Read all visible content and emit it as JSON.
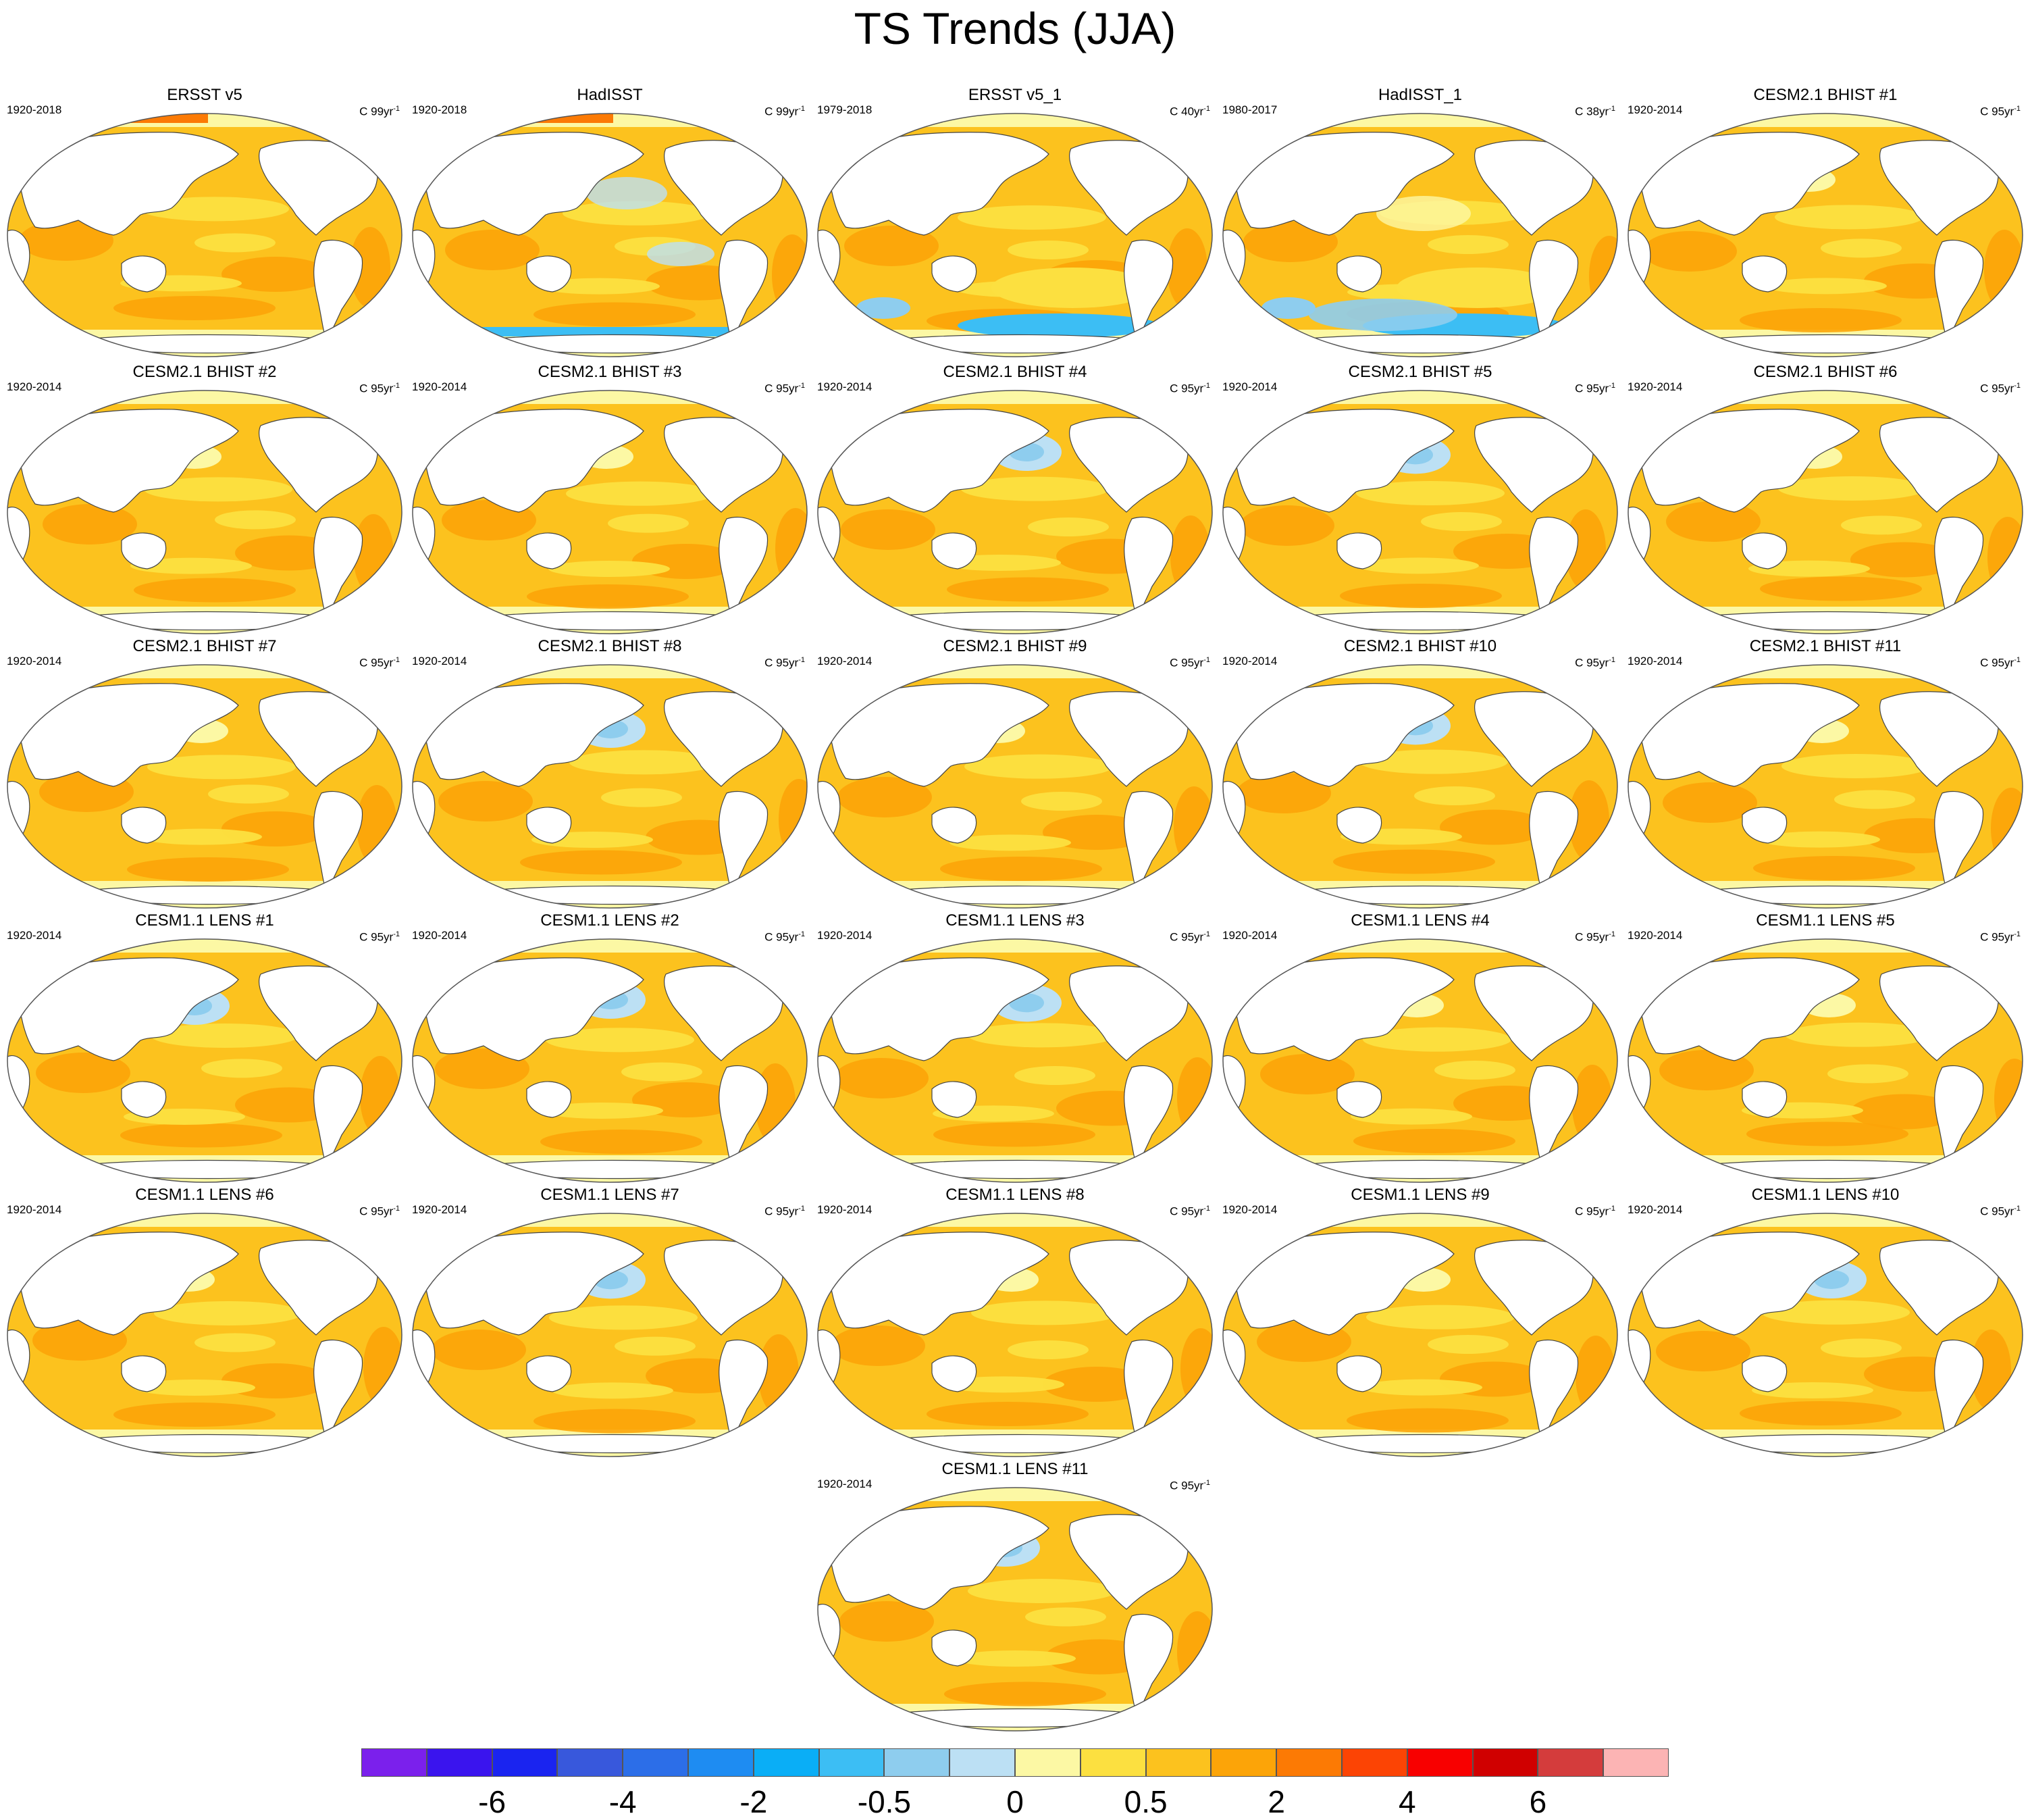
{
  "title": "TS Trends (JJA)",
  "panels": [
    {
      "name": "ERSST v5",
      "years": "1920-2018",
      "units": "C 99yr",
      "variant": "obs"
    },
    {
      "name": "HadISST",
      "years": "1920-2018",
      "units": "C 99yr",
      "variant": "obs-noisy"
    },
    {
      "name": "ERSST v5_1",
      "years": "1979-2018",
      "units": "C 40yr",
      "variant": "obs-recent"
    },
    {
      "name": "HadISST_1",
      "years": "1980-2017",
      "units": "C 38yr",
      "variant": "obs-recent-noisy"
    },
    {
      "name": "CESM2.1 BHIST #1",
      "years": "1920-2014",
      "units": "C 95yr",
      "variant": "model"
    },
    {
      "name": "CESM2.1 BHIST #2",
      "years": "1920-2014",
      "units": "C 95yr",
      "variant": "model"
    },
    {
      "name": "CESM2.1 BHIST #3",
      "years": "1920-2014",
      "units": "C 95yr",
      "variant": "model"
    },
    {
      "name": "CESM2.1 BHIST #4",
      "years": "1920-2014",
      "units": "C 95yr",
      "variant": "model-blue"
    },
    {
      "name": "CESM2.1 BHIST #5",
      "years": "1920-2014",
      "units": "C 95yr",
      "variant": "model-blue"
    },
    {
      "name": "CESM2.1 BHIST #6",
      "years": "1920-2014",
      "units": "C 95yr",
      "variant": "model"
    },
    {
      "name": "CESM2.1 BHIST #7",
      "years": "1920-2014",
      "units": "C 95yr",
      "variant": "model"
    },
    {
      "name": "CESM2.1 BHIST #8",
      "years": "1920-2014",
      "units": "C 95yr",
      "variant": "model-blue"
    },
    {
      "name": "CESM2.1 BHIST #9",
      "years": "1920-2014",
      "units": "C 95yr",
      "variant": "model"
    },
    {
      "name": "CESM2.1 BHIST #10",
      "years": "1920-2014",
      "units": "C 95yr",
      "variant": "model-blue"
    },
    {
      "name": "CESM2.1 BHIST #11",
      "years": "1920-2014",
      "units": "C 95yr",
      "variant": "model"
    },
    {
      "name": "CESM1.1 LENS #1",
      "years": "1920-2014",
      "units": "C 95yr",
      "variant": "model-blue"
    },
    {
      "name": "CESM1.1 LENS #2",
      "years": "1920-2014",
      "units": "C 95yr",
      "variant": "model-blue"
    },
    {
      "name": "CESM1.1 LENS #3",
      "years": "1920-2014",
      "units": "C 95yr",
      "variant": "model-blue"
    },
    {
      "name": "CESM1.1 LENS #4",
      "years": "1920-2014",
      "units": "C 95yr",
      "variant": "model"
    },
    {
      "name": "CESM1.1 LENS #5",
      "years": "1920-2014",
      "units": "C 95yr",
      "variant": "model"
    },
    {
      "name": "CESM1.1 LENS #6",
      "years": "1920-2014",
      "units": "C 95yr",
      "variant": "model"
    },
    {
      "name": "CESM1.1 LENS #7",
      "years": "1920-2014",
      "units": "C 95yr",
      "variant": "model-blue"
    },
    {
      "name": "CESM1.1 LENS #8",
      "years": "1920-2014",
      "units": "C 95yr",
      "variant": "model"
    },
    {
      "name": "CESM1.1 LENS #9",
      "years": "1920-2014",
      "units": "C 95yr",
      "variant": "model"
    },
    {
      "name": "CESM1.1 LENS #10",
      "years": "1920-2014",
      "units": "C 95yr",
      "variant": "model-blue"
    },
    {
      "name": "CESM1.1 LENS #11",
      "years": "1920-2014",
      "units": "C 95yr",
      "variant": "model-blue"
    }
  ],
  "units_superscript": "-1",
  "colorbar": {
    "colors": [
      "#7b20ec",
      "#3a14ee",
      "#1a24f0",
      "#3858dc",
      "#2c6ee8",
      "#1e8cf2",
      "#0aaef6",
      "#3cbef4",
      "#8ecdee",
      "#bce0f4",
      "#fcf8a4",
      "#fce040",
      "#fcc21e",
      "#fca408",
      "#fc7a04",
      "#fc4404",
      "#f80000",
      "#d00000",
      "#d43c3c",
      "#fcb4b4"
    ],
    "tick_labels": [
      "-6",
      "-4",
      "-2",
      "-0.5",
      "0",
      "0.5",
      "2",
      "4",
      "6"
    ],
    "tick_boundaries": [
      2,
      4,
      6,
      8,
      10,
      12,
      14,
      16,
      18
    ]
  },
  "palette": {
    "ocean_orange": "#fcc21e",
    "ocean_dark_orange": "#fca408",
    "ocean_yellow": "#fce040",
    "ocean_pale": "#fcf8a4",
    "ocean_blue_pale": "#bce0f4",
    "ocean_blue": "#8ecdee",
    "ocean_blue_dark": "#3cbef4",
    "ocean_red": "#fc7a04",
    "land": "#ffffff"
  }
}
